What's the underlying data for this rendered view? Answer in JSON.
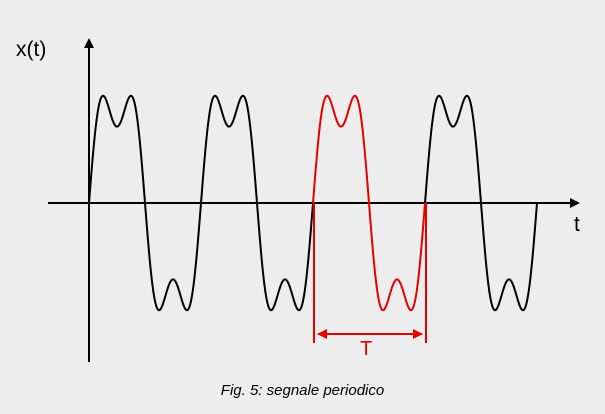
{
  "axes": {
    "y_label": "x(t)",
    "x_label": "t"
  },
  "period_label": "T",
  "caption": "Fig. 5: segnale periodico",
  "colors": {
    "background": "#ededed",
    "signal": "#000000",
    "highlight_period": "#e60000"
  },
  "signal": {
    "periods_shown": 4,
    "highlighted_period_index": 2,
    "components": "fundamental + 3rd harmonic"
  }
}
